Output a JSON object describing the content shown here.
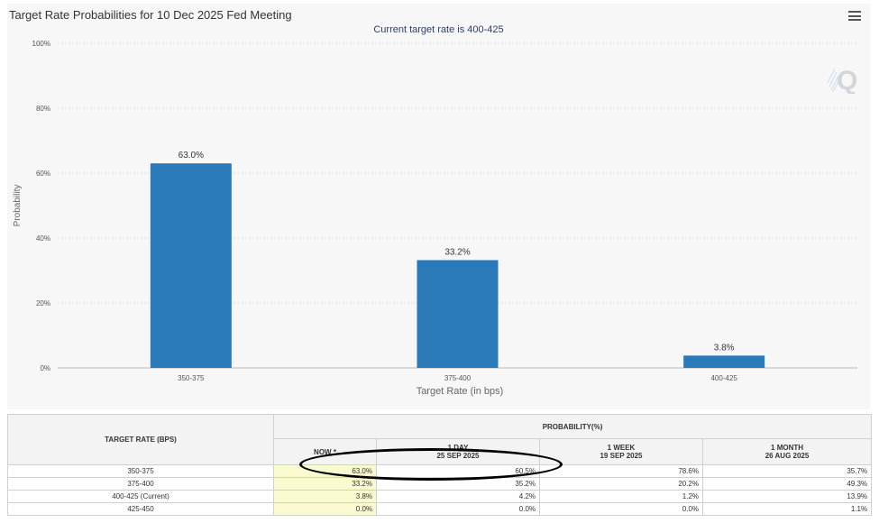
{
  "title": "Target Rate Probabilities for 10 Dec 2025 Fed Meeting",
  "subtitle": "Current target rate is 400-425",
  "watermark_letter": "Q",
  "menu_icon": "hamburger-menu-icon",
  "colors": {
    "bar": "#2a7ab9",
    "now_cell": "#fafad0",
    "panel": "#f7f7f7",
    "ellipse": "#000000"
  },
  "chart_data": {
    "type": "bar",
    "categories": [
      "350-375",
      "375-400",
      "400-425"
    ],
    "values": [
      63.0,
      33.2,
      3.8
    ],
    "data_labels": [
      "63.0%",
      "33.2%",
      "3.8%"
    ],
    "title": "Target Rate Probabilities for 10 Dec 2025 Fed Meeting",
    "subtitle": "Current target rate is 400-425",
    "xlabel": "Target Rate (in bps)",
    "ylabel": "Probability",
    "ylim": [
      0,
      100
    ],
    "yticks": [
      "0%",
      "20%",
      "40%",
      "60%",
      "80%",
      "100%"
    ],
    "grid": true
  },
  "table": {
    "rate_header": "TARGET RATE (BPS)",
    "prob_header": "PROBABILITY(%)",
    "columns": [
      {
        "label": "NOW *",
        "date": ""
      },
      {
        "label": "1 DAY",
        "date": "25 SEP 2025"
      },
      {
        "label": "1 WEEK",
        "date": "19 SEP 2025"
      },
      {
        "label": "1 MONTH",
        "date": "26 AUG 2025"
      }
    ],
    "rows": [
      {
        "rate": "350-375",
        "values": [
          "63.0%",
          "60.5%",
          "78.6%",
          "35.7%"
        ]
      },
      {
        "rate": "375-400",
        "values": [
          "33.2%",
          "35.2%",
          "20.2%",
          "49.3%"
        ]
      },
      {
        "rate": "400-425 (Current)",
        "values": [
          "3.8%",
          "4.2%",
          "1.2%",
          "13.9%"
        ]
      },
      {
        "rate": "425-450",
        "values": [
          "0.0%",
          "0.0%",
          "0.0%",
          "1.1%"
        ]
      }
    ]
  }
}
